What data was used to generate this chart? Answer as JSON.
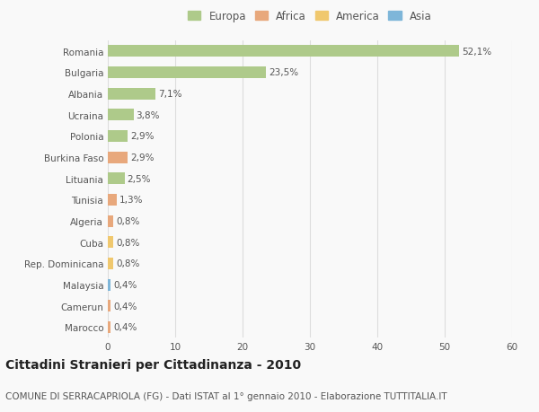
{
  "countries": [
    "Romania",
    "Bulgaria",
    "Albania",
    "Ucraina",
    "Polonia",
    "Burkina Faso",
    "Lituania",
    "Tunisia",
    "Algeria",
    "Cuba",
    "Rep. Dominicana",
    "Malaysia",
    "Camerun",
    "Marocco"
  ],
  "values": [
    52.1,
    23.5,
    7.1,
    3.8,
    2.9,
    2.9,
    2.5,
    1.3,
    0.8,
    0.8,
    0.8,
    0.4,
    0.4,
    0.4
  ],
  "labels": [
    "52,1%",
    "23,5%",
    "7,1%",
    "3,8%",
    "2,9%",
    "2,9%",
    "2,5%",
    "1,3%",
    "0,8%",
    "0,8%",
    "0,8%",
    "0,4%",
    "0,4%",
    "0,4%"
  ],
  "continents": [
    "Europa",
    "Europa",
    "Europa",
    "Europa",
    "Europa",
    "Africa",
    "Europa",
    "Africa",
    "Africa",
    "America",
    "America",
    "Asia",
    "Africa",
    "Africa"
  ],
  "colors": {
    "Europa": "#aeca8a",
    "Africa": "#e8a87c",
    "America": "#f0c86e",
    "Asia": "#7eb6d9"
  },
  "legend_order": [
    "Europa",
    "Africa",
    "America",
    "Asia"
  ],
  "title": "Cittadini Stranieri per Cittadinanza - 2010",
  "subtitle": "COMUNE DI SERRACAPRIOLA (FG) - Dati ISTAT al 1° gennaio 2010 - Elaborazione TUTTITALIA.IT",
  "xlim": [
    0,
    60
  ],
  "xticks": [
    0,
    10,
    20,
    30,
    40,
    50,
    60
  ],
  "bg_color": "#f9f9f9",
  "grid_color": "#dddddd",
  "title_fontsize": 10,
  "subtitle_fontsize": 7.5,
  "label_fontsize": 7.5,
  "tick_fontsize": 7.5,
  "legend_fontsize": 8.5,
  "bar_height": 0.55
}
